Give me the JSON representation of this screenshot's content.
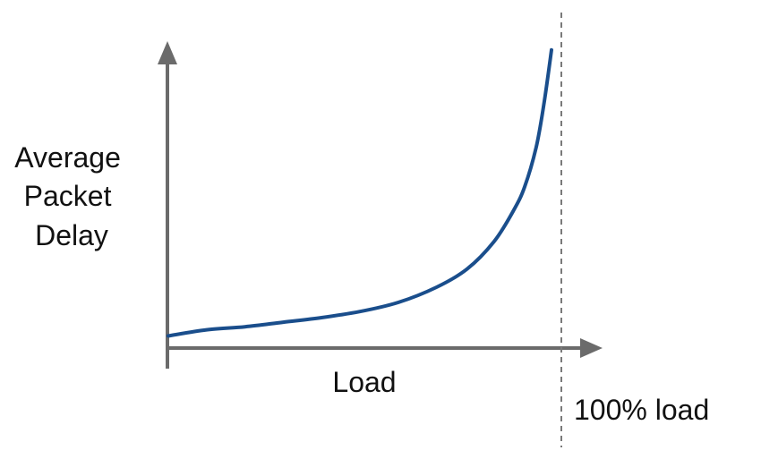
{
  "chart_data": {
    "type": "line",
    "title": "",
    "xlabel": "Load",
    "ylabel_lines": [
      "Average",
      "Packet",
      "Delay"
    ],
    "reference_line_label": "100% load",
    "grid": false,
    "xlim": [
      0,
      1
    ],
    "ylim": [
      0,
      1
    ],
    "series": [
      {
        "x": [
          0.0,
          0.1,
          0.2,
          0.3,
          0.4,
          0.5,
          0.6,
          0.7,
          0.78,
          0.85,
          0.9,
          0.93,
          0.96,
          0.98,
          1.0
        ],
        "y": [
          0.04,
          0.06,
          0.07,
          0.085,
          0.1,
          0.12,
          0.15,
          0.2,
          0.26,
          0.35,
          0.45,
          0.53,
          0.66,
          0.8,
          0.98
        ]
      }
    ],
    "reference_x": 1.0
  },
  "colors": {
    "axis": "#6b6b6b",
    "curve": "#1a4e8c",
    "reference_line": "#7a7a7a",
    "text": "#111111"
  }
}
